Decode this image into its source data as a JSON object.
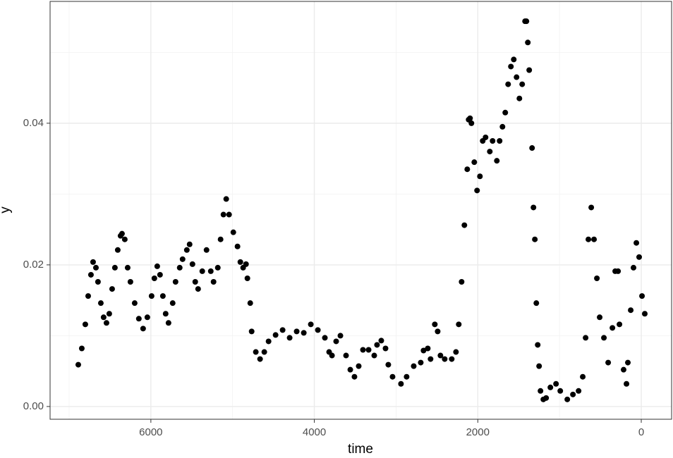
{
  "chart_data": {
    "type": "scatter",
    "x_label": "time",
    "y_label": "y",
    "color": "#000000",
    "xlim": [
      7233,
      -371
    ],
    "ylim": [
      -0.0018,
      0.0572
    ],
    "xticks": [
      6000,
      4000,
      2000,
      0
    ],
    "yticks": [
      {
        "value": 0,
        "label": "0.00"
      },
      {
        "value": 0.02,
        "label": "0.02"
      },
      {
        "value": 0.04,
        "label": "0.04"
      }
    ],
    "x_minor_grid": [
      7000,
      5000,
      3000,
      1000
    ],
    "y_minor_grid": [
      0.01,
      0.03,
      0.05
    ],
    "grid": true,
    "x": [
      6888,
      6845,
      6802,
      6767,
      6733,
      6707,
      6672,
      6647,
      6612,
      6578,
      6543,
      6509,
      6474,
      6440,
      6405,
      6371,
      6353,
      6319,
      6284,
      6250,
      6198,
      6147,
      6095,
      6043,
      5991,
      5957,
      5922,
      5888,
      5853,
      5819,
      5784,
      5733,
      5698,
      5647,
      5612,
      5560,
      5526,
      5491,
      5457,
      5422,
      5371,
      5319,
      5267,
      5233,
      5181,
      5147,
      5112,
      5078,
      5043,
      4991,
      4940,
      4905,
      4871,
      4836,
      4819,
      4784,
      4767,
      4716,
      4664,
      4612,
      4560,
      4474,
      4388,
      4302,
      4216,
      4129,
      4043,
      3957,
      3871,
      3819,
      3784,
      3733,
      3681,
      3612,
      3560,
      3509,
      3457,
      3405,
      3336,
      3267,
      3233,
      3181,
      3129,
      3095,
      3043,
      2940,
      2871,
      2784,
      2698,
      2664,
      2612,
      2578,
      2526,
      2491,
      2457,
      2405,
      2319,
      2267,
      2233,
      2198,
      2164,
      2129,
      2112,
      2095,
      2078,
      2043,
      2009,
      1974,
      1940,
      1905,
      1853,
      1819,
      1767,
      1733,
      1698,
      1664,
      1629,
      1595,
      1560,
      1526,
      1491,
      1457,
      1422,
      1405,
      1388,
      1371,
      1336,
      1319,
      1302,
      1284,
      1267,
      1250,
      1233,
      1198,
      1164,
      1112,
      1043,
      991,
      905,
      836,
      767,
      716,
      681,
      647,
      612,
      578,
      543,
      509,
      457,
      405,
      353,
      319,
      284,
      267,
      216,
      181,
      164,
      129,
      95,
      60,
      26,
      -9,
      -43
    ],
    "values": [
      0.0059,
      0.0082,
      0.0116,
      0.0156,
      0.0186,
      0.0204,
      0.0196,
      0.0176,
      0.0146,
      0.0126,
      0.0118,
      0.0131,
      0.0166,
      0.0196,
      0.0221,
      0.0241,
      0.0244,
      0.0236,
      0.0196,
      0.0176,
      0.0146,
      0.0124,
      0.011,
      0.0126,
      0.0156,
      0.0181,
      0.0198,
      0.0186,
      0.0156,
      0.0131,
      0.0118,
      0.0146,
      0.0176,
      0.0196,
      0.0208,
      0.0221,
      0.0229,
      0.0201,
      0.0176,
      0.0166,
      0.0191,
      0.0221,
      0.0191,
      0.0176,
      0.0196,
      0.0236,
      0.0271,
      0.0293,
      0.0271,
      0.0246,
      0.0226,
      0.0204,
      0.0196,
      0.0201,
      0.0181,
      0.0146,
      0.0106,
      0.0077,
      0.0067,
      0.0077,
      0.0092,
      0.0101,
      0.0108,
      0.0097,
      0.0106,
      0.0104,
      0.0116,
      0.0108,
      0.0097,
      0.0077,
      0.0072,
      0.0092,
      0.01,
      0.0072,
      0.0052,
      0.0042,
      0.0057,
      0.008,
      0.008,
      0.0072,
      0.0087,
      0.0093,
      0.0082,
      0.0059,
      0.0042,
      0.0032,
      0.0042,
      0.0057,
      0.0062,
      0.0079,
      0.0082,
      0.0067,
      0.0116,
      0.0106,
      0.0072,
      0.0067,
      0.0067,
      0.0077,
      0.0116,
      0.0176,
      0.0256,
      0.0335,
      0.0405,
      0.0407,
      0.04,
      0.0345,
      0.0305,
      0.0325,
      0.0375,
      0.038,
      0.036,
      0.0375,
      0.0347,
      0.0375,
      0.0395,
      0.0415,
      0.0455,
      0.048,
      0.049,
      0.0465,
      0.0435,
      0.0455,
      0.0544,
      0.0544,
      0.0514,
      0.0475,
      0.0365,
      0.0281,
      0.0236,
      0.0146,
      0.0087,
      0.0057,
      0.0022,
      0.001,
      0.0012,
      0.0027,
      0.0032,
      0.0022,
      0.001,
      0.0017,
      0.0022,
      0.0042,
      0.0097,
      0.0236,
      0.0281,
      0.0236,
      0.0181,
      0.0126,
      0.0097,
      0.0062,
      0.0111,
      0.0191,
      0.0191,
      0.0116,
      0.0052,
      0.0032,
      0.0062,
      0.0136,
      0.0196,
      0.0231,
      0.0211,
      0.0156,
      0.0131
    ]
  }
}
